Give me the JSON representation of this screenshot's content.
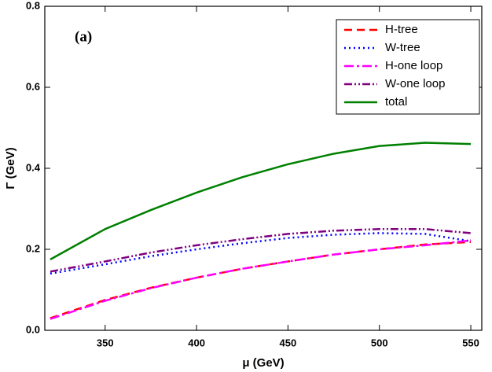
{
  "chart_data": {
    "type": "line",
    "annotation": "(a)",
    "x_label": "μ (GeV)",
    "y_label": "Γ (GeV)",
    "x": [
      320,
      350,
      375,
      400,
      425,
      450,
      475,
      500,
      525,
      550
    ],
    "series": [
      {
        "name": "H-tree",
        "color": "#ff0000",
        "dash": "10,6",
        "values": [
          0.03,
          0.075,
          0.105,
          0.13,
          0.152,
          0.17,
          0.187,
          0.2,
          0.212,
          0.218
        ]
      },
      {
        "name": "W-tree",
        "color": "#0000ff",
        "dash": "2,4",
        "values": [
          0.14,
          0.163,
          0.183,
          0.2,
          0.215,
          0.228,
          0.236,
          0.24,
          0.238,
          0.22
        ]
      },
      {
        "name": "H-one loop",
        "color": "#ff00ff",
        "dash": "12,4,3,4",
        "values": [
          0.028,
          0.073,
          0.104,
          0.13,
          0.152,
          0.17,
          0.187,
          0.2,
          0.21,
          0.222
        ]
      },
      {
        "name": "W-one loop",
        "color": "#800080",
        "dash": "10,3,2,3,2,3",
        "values": [
          0.145,
          0.17,
          0.192,
          0.21,
          0.225,
          0.238,
          0.246,
          0.25,
          0.25,
          0.24
        ]
      },
      {
        "name": "total",
        "color": "#008000",
        "dash": "none",
        "values": [
          0.175,
          0.25,
          0.297,
          0.34,
          0.378,
          0.41,
          0.436,
          0.455,
          0.463,
          0.46
        ]
      }
    ],
    "xlim": [
      317,
      556
    ],
    "ylim": [
      0,
      0.8
    ],
    "xticks": [
      350,
      400,
      450,
      500,
      550
    ],
    "yticks": [
      {
        "value": 0,
        "label": "0.0"
      },
      0.2,
      0.4,
      0.6,
      0.8
    ],
    "legend": "upper right"
  }
}
